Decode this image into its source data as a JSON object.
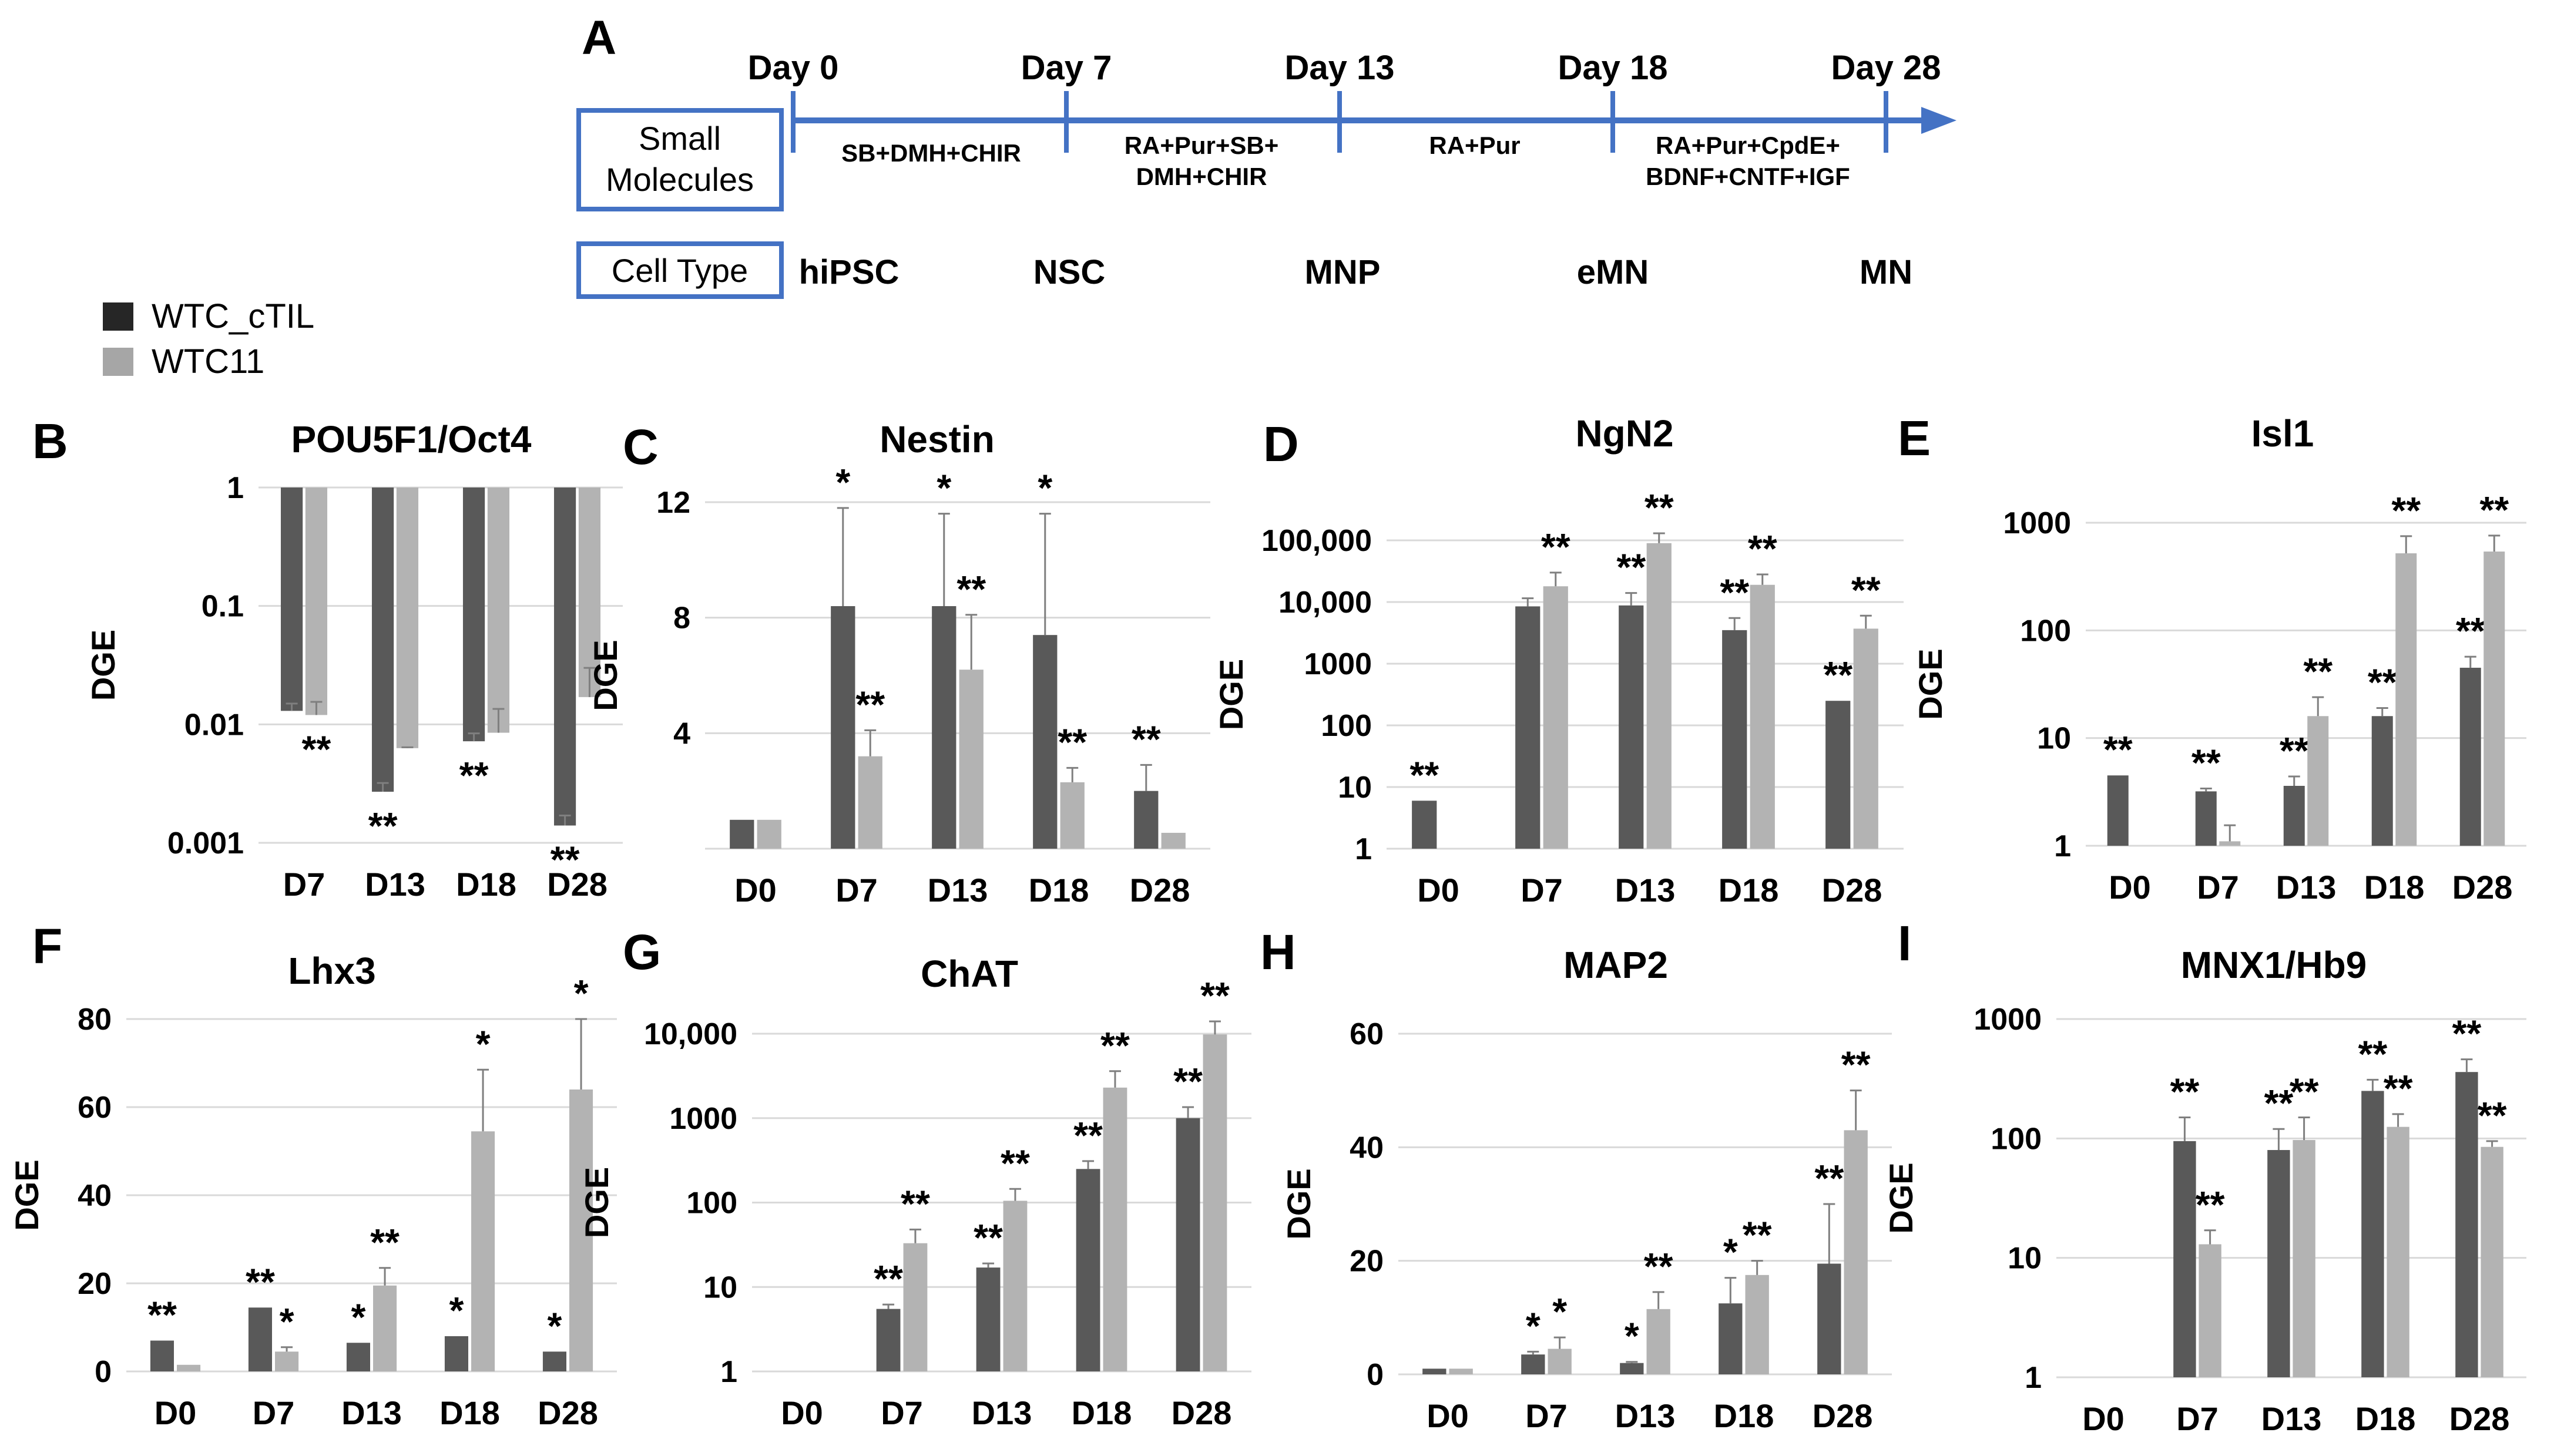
{
  "panelA": {
    "letter": "A",
    "days": [
      "Day 0",
      "Day 7",
      "Day 13",
      "Day 18",
      "Day 28"
    ],
    "molecules_label_lines": [
      "Small",
      "Molecules"
    ],
    "celltype_label": "Cell Type",
    "phases": [
      [
        "SB+DMH+CHIR"
      ],
      [
        "RA+Pur+SB+",
        "DMH+CHIR"
      ],
      [
        "RA+Pur"
      ],
      [
        "RA+Pur+CpdE+",
        "BDNF+CNTF+IGF"
      ]
    ],
    "cell_types": [
      "hiPSC",
      "NSC",
      "MNP",
      "eMN",
      "MN"
    ]
  },
  "legend": {
    "items": [
      {
        "label": "WTC_cTIL",
        "color": "#262626"
      },
      {
        "label": "WTC11",
        "color": "#a6a6a6"
      }
    ]
  },
  "colors": {
    "dark": "#595959",
    "light": "#b3b3b3",
    "axisblue": "#4472c4"
  },
  "chart_data": [
    {
      "panel": "B",
      "title": "POU5F1/Oct4",
      "type": "bar",
      "ylabel": "DGE",
      "scale": "log",
      "ylim": [
        0.001,
        1
      ],
      "yticks": [
        {
          "v": 1,
          "label": "1"
        },
        {
          "v": 0.1,
          "label": "0.1"
        },
        {
          "v": 0.01,
          "label": "0.01"
        },
        {
          "v": 0.001,
          "label": "0.001"
        }
      ],
      "categories": [
        "D7",
        "D13",
        "D18",
        "D28"
      ],
      "series": [
        {
          "name": "WTC_cTIL",
          "values": [
            0.013,
            0.0027,
            0.0072,
            0.0014
          ],
          "err": [
            0.015,
            0.0032,
            0.0084,
            0.0017
          ],
          "sig": [
            "",
            "**",
            "**",
            "**"
          ]
        },
        {
          "name": "WTC11",
          "values": [
            0.012,
            0.0063,
            0.0085,
            0.017
          ],
          "err": [
            0.0155,
            0.0064,
            0.0135,
            0.03
          ],
          "sig": [
            "**",
            "",
            "",
            ""
          ]
        }
      ]
    },
    {
      "panel": "C",
      "title": "Nestin",
      "type": "bar",
      "ylabel": "DGE",
      "scale": "linear",
      "ylim": [
        0,
        12
      ],
      "yticks": [
        {
          "v": 12,
          "label": "12"
        },
        {
          "v": 8,
          "label": "8"
        },
        {
          "v": 4,
          "label": "4"
        }
      ],
      "categories": [
        "D0",
        "D7",
        "D13",
        "D18",
        "D28"
      ],
      "series": [
        {
          "name": "WTC_cTIL",
          "values": [
            1,
            8.4,
            8.4,
            7.4,
            2.0
          ],
          "err": [
            1,
            11.8,
            11.6,
            11.6,
            2.9
          ],
          "sig": [
            "",
            "*",
            "*",
            "*",
            "**"
          ]
        },
        {
          "name": "WTC11",
          "values": [
            1,
            3.2,
            6.2,
            2.3,
            0.55
          ],
          "err": [
            1,
            4.1,
            8.1,
            2.8,
            0.55
          ],
          "sig": [
            "",
            "**",
            "**",
            "**",
            ""
          ]
        }
      ]
    },
    {
      "panel": "D",
      "title": "NgN2",
      "type": "bar",
      "ylabel": "DGE",
      "scale": "log",
      "ylim": [
        1,
        100000
      ],
      "yticks": [
        {
          "v": 100000,
          "label": "100,000"
        },
        {
          "v": 10000,
          "label": "10,000"
        },
        {
          "v": 1000,
          "label": "1000"
        },
        {
          "v": 100,
          "label": "100"
        },
        {
          "v": 10,
          "label": "10"
        },
        {
          "v": 1,
          "label": "1"
        }
      ],
      "categories": [
        "D0",
        "D7",
        "D13",
        "D18",
        "D28"
      ],
      "series": [
        {
          "name": "WTC_cTIL",
          "values": [
            6,
            8500,
            8800,
            3500,
            250
          ],
          "err": [
            6,
            11500,
            14000,
            5500,
            250
          ],
          "sig": [
            "**",
            "",
            "**",
            "**",
            "**"
          ]
        },
        {
          "name": "WTC11",
          "values": [
            null,
            18000,
            90000,
            19000,
            3700
          ],
          "err": [
            null,
            30000,
            130000,
            28000,
            6000
          ],
          "sig": [
            "",
            "**",
            "**",
            "**",
            "**"
          ]
        }
      ]
    },
    {
      "panel": "E",
      "title": "Isl1",
      "type": "bar",
      "ylabel": "DGE",
      "scale": "log",
      "ylim": [
        1,
        1000
      ],
      "yticks": [
        {
          "v": 1000,
          "label": "1000"
        },
        {
          "v": 100,
          "label": "100"
        },
        {
          "v": 10,
          "label": "10"
        },
        {
          "v": 1,
          "label": "1"
        }
      ],
      "categories": [
        "D0",
        "D7",
        "D13",
        "D18",
        "D28"
      ],
      "series": [
        {
          "name": "WTC_cTIL",
          "values": [
            4.5,
            3.2,
            3.6,
            16,
            45
          ],
          "err": [
            4.5,
            3.4,
            4.4,
            19,
            57
          ],
          "sig": [
            "**",
            "**",
            "**",
            "**",
            "**"
          ]
        },
        {
          "name": "WTC11",
          "values": [
            null,
            1.1,
            16,
            520,
            540
          ],
          "err": [
            null,
            1.55,
            24,
            750,
            760
          ],
          "sig": [
            "",
            "",
            "**",
            "**",
            "**"
          ]
        }
      ]
    },
    {
      "panel": "F",
      "title": "Lhx3",
      "type": "bar",
      "ylabel": "DGE",
      "scale": "linear",
      "ylim": [
        0,
        80
      ],
      "yticks": [
        {
          "v": 80,
          "label": "80"
        },
        {
          "v": 60,
          "label": "60"
        },
        {
          "v": 40,
          "label": "40"
        },
        {
          "v": 20,
          "label": "20"
        },
        {
          "v": 0,
          "label": "0"
        }
      ],
      "categories": [
        "D0",
        "D7",
        "D13",
        "D18",
        "D28"
      ],
      "series": [
        {
          "name": "WTC_cTIL",
          "values": [
            7,
            14.5,
            6.5,
            8,
            4.5
          ],
          "err": [
            7,
            14.5,
            6.5,
            8,
            4.5
          ],
          "sig": [
            "**",
            "**",
            "*",
            "*",
            "*"
          ]
        },
        {
          "name": "WTC11",
          "values": [
            1.5,
            4.5,
            19.5,
            54.5,
            64
          ],
          "err": [
            1.5,
            5.5,
            23.5,
            68.5,
            80
          ],
          "sig": [
            "",
            "*",
            "**",
            "*",
            "*"
          ]
        }
      ]
    },
    {
      "panel": "G",
      "title": "ChAT",
      "type": "bar",
      "ylabel": "DGE",
      "scale": "log",
      "ylim": [
        1,
        10000
      ],
      "yticks": [
        {
          "v": 10000,
          "label": "10,000"
        },
        {
          "v": 1000,
          "label": "1000"
        },
        {
          "v": 100,
          "label": "100"
        },
        {
          "v": 10,
          "label": "10"
        },
        {
          "v": 1,
          "label": "1"
        }
      ],
      "categories": [
        "D0",
        "D7",
        "D13",
        "D18",
        "D28"
      ],
      "series": [
        {
          "name": "WTC_cTIL",
          "values": [
            null,
            5.5,
            17,
            250,
            1000
          ],
          "err": [
            null,
            6.2,
            19,
            310,
            1350
          ],
          "sig": [
            "",
            "**",
            "**",
            "**",
            "**"
          ]
        },
        {
          "name": "WTC11",
          "values": [
            null,
            33,
            105,
            2300,
            9800
          ],
          "err": [
            null,
            48,
            145,
            3600,
            14000
          ],
          "sig": [
            "",
            "**",
            "**",
            "**",
            "**"
          ]
        }
      ]
    },
    {
      "panel": "H",
      "title": "MAP2",
      "type": "bar",
      "ylabel": "DGE",
      "scale": "linear",
      "ylim": [
        0,
        60
      ],
      "yticks": [
        {
          "v": 60,
          "label": "60"
        },
        {
          "v": 40,
          "label": "40"
        },
        {
          "v": 20,
          "label": "20"
        },
        {
          "v": 0,
          "label": "0"
        }
      ],
      "categories": [
        "D0",
        "D7",
        "D13",
        "D18",
        "D28"
      ],
      "series": [
        {
          "name": "WTC_cTIL",
          "values": [
            1,
            3.5,
            2,
            12.5,
            19.5
          ],
          "err": [
            1,
            4,
            2.2,
            17,
            30
          ],
          "sig": [
            "",
            "*",
            "*",
            "*",
            "**"
          ]
        },
        {
          "name": "WTC11",
          "values": [
            1,
            4.5,
            11.5,
            17.5,
            43
          ],
          "err": [
            1,
            6.5,
            14.5,
            20,
            50
          ],
          "sig": [
            "",
            "*",
            "**",
            "**",
            "**"
          ]
        }
      ]
    },
    {
      "panel": "I",
      "title": "MNX1/Hb9",
      "type": "bar",
      "ylabel": "DGE",
      "scale": "log",
      "ylim": [
        1,
        1000
      ],
      "yticks": [
        {
          "v": 1000,
          "label": "1000"
        },
        {
          "v": 100,
          "label": "100"
        },
        {
          "v": 10,
          "label": "10"
        },
        {
          "v": 1,
          "label": "1"
        }
      ],
      "categories": [
        "D0",
        "D7",
        "D13",
        "D18",
        "D28"
      ],
      "series": [
        {
          "name": "WTC_cTIL",
          "values": [
            null,
            95,
            80,
            250,
            360
          ],
          "err": [
            null,
            150,
            120,
            310,
            460
          ],
          "sig": [
            "",
            "**",
            "**",
            "**",
            "**"
          ]
        },
        {
          "name": "WTC11",
          "values": [
            null,
            13,
            97,
            125,
            85
          ],
          "err": [
            null,
            17,
            150,
            160,
            95
          ],
          "sig": [
            "",
            "**",
            "**",
            "**",
            "**"
          ]
        }
      ]
    }
  ]
}
